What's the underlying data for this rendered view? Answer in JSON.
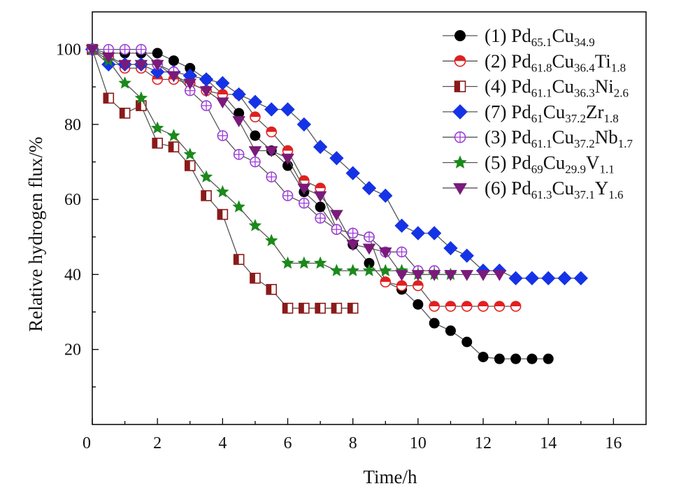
{
  "chart_data": {
    "type": "line",
    "title": "",
    "xlabel": "Time/h",
    "ylabel": "Relative hydrogen flux/%",
    "xlim": [
      0,
      17
    ],
    "ylim": [
      0,
      110
    ],
    "x_ticks": [
      "0",
      "2",
      "4",
      "6",
      "8",
      "10",
      "12",
      "14",
      "16"
    ],
    "y_ticks": [
      "20",
      "40",
      "60",
      "80",
      "100"
    ],
    "grid": false,
    "legend_position": "top-right",
    "series": [
      {
        "name": "(1) Pd65.1Cu34.9",
        "label_parts": [
          {
            "t": "(1) Pd"
          },
          {
            "t": "65.1",
            "sub": true
          },
          {
            "t": "Cu"
          },
          {
            "t": "34.9",
            "sub": true
          }
        ],
        "color": "#000000",
        "marker": "circle",
        "x": [
          0,
          0.5,
          1,
          1.5,
          2,
          2.5,
          3,
          3.5,
          4,
          4.5,
          5,
          5.5,
          6,
          6.5,
          7,
          7.5,
          8,
          8.5,
          9,
          9.5,
          10,
          10.5,
          11,
          11.5,
          12,
          12.5,
          13,
          13.5,
          14
        ],
        "y": [
          100,
          99,
          99,
          99,
          99,
          97,
          95,
          92,
          88,
          83,
          77,
          73,
          69,
          62,
          58,
          52,
          48,
          43,
          38,
          36,
          32,
          27,
          25,
          22,
          18,
          17.5,
          17.5,
          17.5,
          17.5
        ]
      },
      {
        "name": "(2) Pd61.8Cu36.4Ti1.8",
        "label_parts": [
          {
            "t": "(2) Pd"
          },
          {
            "t": "61.8",
            "sub": true
          },
          {
            "t": "Cu"
          },
          {
            "t": "36.4",
            "sub": true
          },
          {
            "t": "Ti"
          },
          {
            "t": "1.8",
            "sub": true
          }
        ],
        "color": "#e02020",
        "marker": "half-circle",
        "x": [
          0,
          0.5,
          1,
          1.5,
          2,
          2.5,
          3,
          3.5,
          4,
          4.5,
          5,
          5.5,
          6,
          6.5,
          7,
          7.5,
          8,
          8.5,
          9,
          9.5,
          10,
          10.5,
          11,
          11.5,
          12,
          12.5,
          13
        ],
        "y": [
          100,
          98,
          95,
          95,
          92,
          92,
          91,
          89,
          88,
          88,
          82,
          78,
          73,
          65,
          63,
          52,
          51,
          50,
          38,
          37,
          37,
          31.5,
          31.5,
          31.5,
          31.5,
          31.5,
          31.5
        ]
      },
      {
        "name": "(4) Pd61.1Cu36.3Ni2.6",
        "label_parts": [
          {
            "t": "(4) Pd"
          },
          {
            "t": "61.1",
            "sub": true
          },
          {
            "t": "Cu"
          },
          {
            "t": "36.3",
            "sub": true
          },
          {
            "t": "Ni"
          },
          {
            "t": "2.6",
            "sub": true
          }
        ],
        "color": "#8b1a1a",
        "marker": "half-square",
        "x": [
          0,
          0.5,
          1,
          1.5,
          2,
          2.5,
          3,
          3.5,
          4,
          4.5,
          5,
          5.5,
          6,
          6.5,
          7,
          7.5,
          8
        ],
        "y": [
          100,
          87,
          83,
          85,
          75,
          74,
          69,
          61,
          56,
          44,
          39,
          36,
          31,
          31,
          31,
          31,
          31
        ]
      },
      {
        "name": "(7) Pd61Cu37.2Zr1.8",
        "label_parts": [
          {
            "t": "(7) Pd"
          },
          {
            "t": "61",
            "sub": true
          },
          {
            "t": "Cu"
          },
          {
            "t": "37.2",
            "sub": true
          },
          {
            "t": "Zr"
          },
          {
            "t": "1.8",
            "sub": true
          }
        ],
        "color": "#1533e6",
        "marker": "diamond",
        "x": [
          0,
          0.5,
          1,
          1.5,
          2,
          2.5,
          3,
          3.5,
          4,
          4.5,
          5,
          5.5,
          6,
          6.5,
          7,
          7.5,
          8,
          8.5,
          9,
          9.5,
          10,
          10.5,
          11,
          11.5,
          12,
          12.5,
          13,
          13.5,
          14,
          14.5,
          15
        ],
        "y": [
          100,
          96,
          96,
          96,
          94,
          94,
          93,
          92,
          91,
          88,
          86,
          84,
          84,
          80,
          74,
          71,
          67,
          63,
          61,
          53,
          51,
          51,
          47,
          45,
          41,
          41,
          39,
          39,
          39,
          39,
          39
        ]
      },
      {
        "name": "(3) Pd61.1Cu37.2Nb1.7",
        "label_parts": [
          {
            "t": "(3) Pd"
          },
          {
            "t": "61.1",
            "sub": true
          },
          {
            "t": "Cu"
          },
          {
            "t": "37.2",
            "sub": true
          },
          {
            "t": "Nb"
          },
          {
            "t": "1.7",
            "sub": true
          }
        ],
        "color": "#9b3fd6",
        "marker": "circle-plus",
        "x": [
          0,
          0.5,
          1,
          1.5,
          2,
          2.5,
          3,
          3.5,
          4,
          4.5,
          5,
          5.5,
          6,
          6.5,
          7,
          7.5,
          8,
          8.5,
          9,
          9.5,
          10,
          10.5
        ],
        "y": [
          100,
          100,
          100,
          100,
          96,
          94,
          89,
          85,
          77,
          72,
          70,
          66,
          61,
          59,
          55,
          52,
          51,
          50,
          46,
          46,
          41,
          41
        ]
      },
      {
        "name": "(5) Pd69Cu29.9V1.1",
        "label_parts": [
          {
            "t": "(5) Pd"
          },
          {
            "t": "69",
            "sub": true
          },
          {
            "t": "Cu"
          },
          {
            "t": "29.9",
            "sub": true
          },
          {
            "t": "V"
          },
          {
            "t": "1.1",
            "sub": true
          }
        ],
        "color": "#1a8a1a",
        "marker": "star",
        "x": [
          0,
          0.5,
          1,
          1.5,
          2,
          2.5,
          3,
          3.5,
          4,
          4.5,
          5,
          5.5,
          6,
          6.5,
          7,
          7.5,
          8,
          8.5,
          9,
          9.5,
          10,
          10.5,
          11
        ],
        "y": [
          100,
          97,
          91,
          87,
          79,
          77,
          72,
          66,
          62,
          58,
          53,
          49,
          43,
          43,
          43,
          41,
          41,
          41,
          41,
          41,
          40,
          40,
          40
        ]
      },
      {
        "name": "(6) Pd61.3Cu37.1Y1.6",
        "label_parts": [
          {
            "t": "(6) Pd"
          },
          {
            "t": "61.3",
            "sub": true
          },
          {
            "t": "Cu"
          },
          {
            "t": "37.1",
            "sub": true
          },
          {
            "t": "Y"
          },
          {
            "t": "1.6",
            "sub": true
          }
        ],
        "color": "#7a1a7a",
        "marker": "triangle-down",
        "x": [
          0,
          0.5,
          1,
          1.5,
          2,
          2.5,
          3,
          3.5,
          4,
          4.5,
          5,
          5.5,
          6,
          6.5,
          7,
          7.5,
          8,
          8.5,
          9,
          9.5,
          10,
          10.5,
          11,
          11.5,
          12,
          12.5
        ],
        "y": [
          100,
          98,
          96,
          96,
          96,
          93,
          91,
          89,
          86,
          81,
          73,
          73,
          71,
          63,
          61,
          56,
          48,
          47,
          46,
          40,
          40,
          40,
          40,
          40,
          40,
          40
        ]
      }
    ]
  }
}
